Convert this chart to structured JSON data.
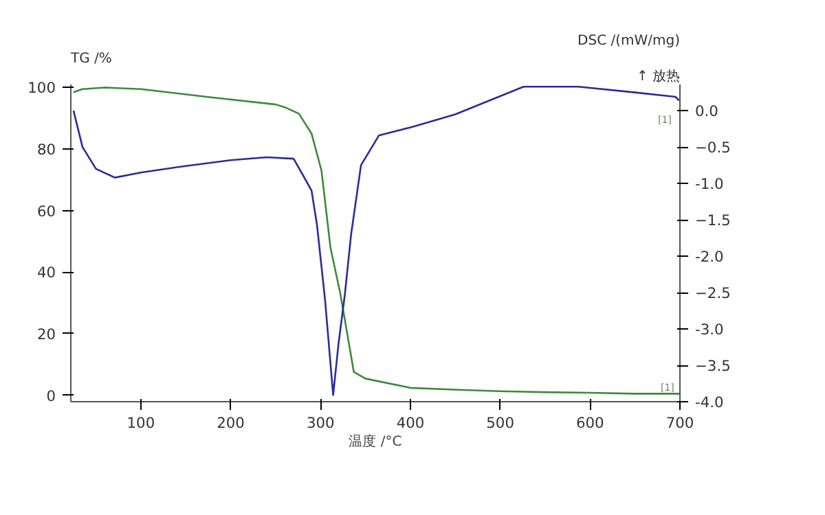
{
  "chart_data": {
    "type": "line",
    "ylabel": "TG /%",
    "y2label": "DSC /(mW/mg)",
    "xlabel": "温度 /°C",
    "annotations": [
      "↑ 放热",
      "[1]",
      "[1]"
    ],
    "xlim": [
      22,
      700
    ],
    "xticks": [
      100,
      200,
      300,
      400,
      500,
      600,
      700
    ],
    "ylim": [
      -2.1,
      101
    ],
    "yticks": [
      0,
      20,
      40,
      60,
      80,
      100
    ],
    "y2lim": [
      -4.0,
      0.36
    ],
    "y2ticks": [
      {
        "value": 0,
        "label": "0.0"
      },
      -0.5,
      {
        "value": -1,
        "label": "-1.0"
      },
      -1.5,
      {
        "value": -2,
        "label": "-2.0"
      },
      -2.5,
      {
        "value": -3,
        "label": "-3.0"
      },
      -3.5,
      {
        "value": -4,
        "label": "-4.0"
      }
    ],
    "grid": false,
    "series": [
      {
        "color": "#3b8a3b",
        "x": [
          25,
          35,
          60,
          100,
          173,
          250,
          261,
          276,
          290,
          301,
          311,
          322,
          337,
          350,
          400,
          450,
          500,
          550,
          600,
          650,
          700
        ],
        "values": [
          98.5,
          99.5,
          100,
          99.5,
          97,
          94.5,
          93.5,
          91.5,
          85,
          73,
          48,
          33,
          7.6,
          5.4,
          2.4,
          1.8,
          1.3,
          1.0,
          0.8,
          0.5,
          0.5
        ]
      },
      {
        "color": "#2b2b9a",
        "axis": "y2",
        "x": [
          25,
          35,
          50,
          71,
          100,
          150,
          200,
          240,
          270,
          281,
          290,
          296,
          305,
          314,
          320,
          327,
          334,
          345,
          365,
          403,
          450,
          500,
          526,
          587,
          650,
          695,
          699
        ],
        "values": [
          0.0,
          -0.5,
          -0.8,
          -0.92,
          -0.85,
          -0.76,
          -0.68,
          -0.64,
          -0.66,
          -0.9,
          -1.1,
          -1.57,
          -2.6,
          -3.91,
          -3.2,
          -2.53,
          -1.7,
          -0.75,
          -0.34,
          -0.22,
          -0.05,
          0.2,
          0.33,
          0.33,
          0.25,
          0.19,
          0.14
        ]
      }
    ]
  }
}
